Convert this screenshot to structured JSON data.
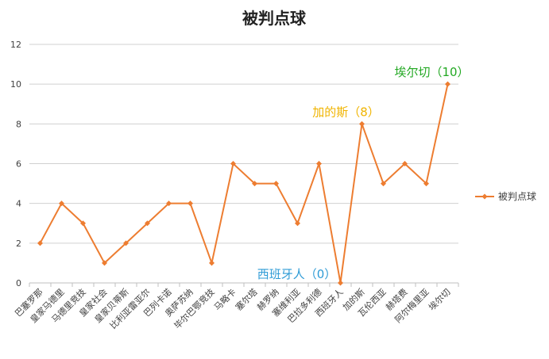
{
  "chart_data": {
    "type": "line",
    "title": "被判点球",
    "xlabel": "",
    "ylabel": "",
    "ylim": [
      0,
      12
    ],
    "yticks": [
      0,
      2,
      4,
      6,
      8,
      10,
      12
    ],
    "grid": true,
    "legend_position": "right",
    "categories": [
      "巴塞罗那",
      "皇家马德里",
      "马德里竞技",
      "皇家社会",
      "皇家贝蒂斯",
      "比利亚雷亚尔",
      "巴列卡诺",
      "奥萨苏纳",
      "毕尔巴鄂竞技",
      "马略卡",
      "塞尔塔",
      "赫罗纳",
      "塞维利亚",
      "巴拉多利德",
      "西班牙人",
      "加的斯",
      "瓦伦西亚",
      "赫塔费",
      "阿尔梅里亚",
      "埃尔切"
    ],
    "series": [
      {
        "name": "被判点球",
        "color": "#ED7D31",
        "values": [
          2,
          4,
          3,
          1,
          2,
          3,
          4,
          4,
          1,
          6,
          5,
          5,
          3,
          6,
          0,
          8,
          5,
          6,
          5,
          10
        ]
      }
    ],
    "annotations": [
      {
        "text": "西班牙人（0）",
        "category": "西班牙人",
        "value": 0,
        "color": "#2E9BD6"
      },
      {
        "text": "加的斯（8）",
        "category": "加的斯",
        "value": 8,
        "color": "#F0B400"
      },
      {
        "text": "埃尔切（10）",
        "category": "埃尔切",
        "value": 10,
        "color": "#22A822"
      }
    ]
  }
}
